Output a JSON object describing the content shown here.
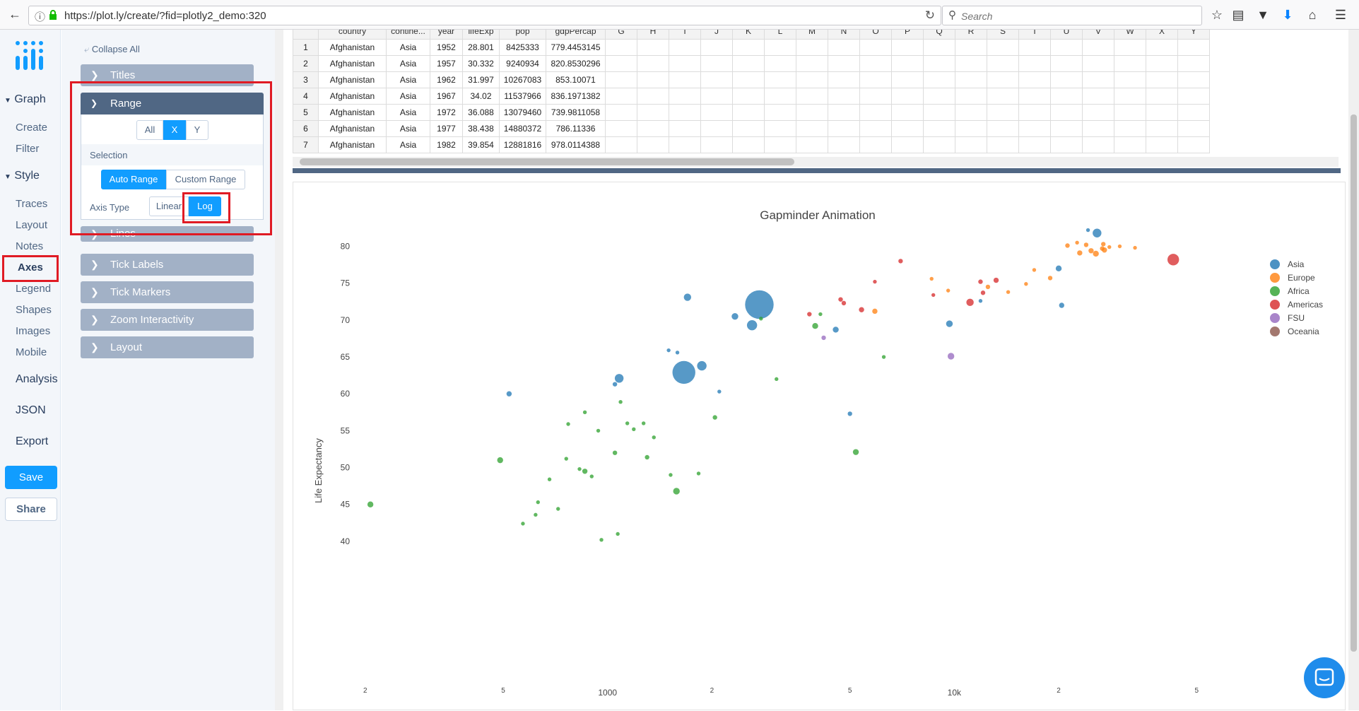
{
  "browser": {
    "url": "https://plot.ly/create/?fid=plotly2_demo:320",
    "search_placeholder": "Search"
  },
  "nav": {
    "graph": "Graph",
    "create": "Create",
    "filter": "Filter",
    "style": "Style",
    "traces": "Traces",
    "layout": "Layout",
    "notes": "Notes",
    "axes": "Axes",
    "legend": "Legend",
    "shapes": "Shapes",
    "images": "Images",
    "mobile": "Mobile",
    "analysis": "Analysis",
    "json": "JSON",
    "export": "Export",
    "save": "Save",
    "share": "Share"
  },
  "panel": {
    "collapse_all": "Collapse All",
    "titles": "Titles",
    "range": "Range",
    "axis_all": "All",
    "axis_x": "X",
    "axis_y": "Y",
    "selection": "Selection",
    "auto_range": "Auto Range",
    "custom_range": "Custom Range",
    "axis_type": "Axis Type",
    "linear": "Linear",
    "log": "Log",
    "lines": "Lines",
    "tick_labels": "Tick Labels",
    "tick_markers": "Tick Markers",
    "zoom_interactivity": "Zoom Interactivity",
    "layout": "Layout"
  },
  "grid": {
    "headers": [
      "country",
      "contine...",
      "year",
      "lifeExp",
      "pop",
      "gdpPercap",
      "G",
      "H",
      "I",
      "J",
      "K",
      "L",
      "M",
      "N",
      "O",
      "P",
      "Q",
      "R",
      "S",
      "T",
      "U",
      "V",
      "W",
      "X",
      "Y"
    ],
    "rows": [
      [
        "1",
        "Afghanistan",
        "Asia",
        "1952",
        "28.801",
        "8425333",
        "779.4453145"
      ],
      [
        "2",
        "Afghanistan",
        "Asia",
        "1957",
        "30.332",
        "9240934",
        "820.8530296"
      ],
      [
        "3",
        "Afghanistan",
        "Asia",
        "1962",
        "31.997",
        "10267083",
        "853.10071"
      ],
      [
        "4",
        "Afghanistan",
        "Asia",
        "1967",
        "34.02",
        "11537966",
        "836.1971382"
      ],
      [
        "5",
        "Afghanistan",
        "Asia",
        "1972",
        "36.088",
        "13079460",
        "739.9811058"
      ],
      [
        "6",
        "Afghanistan",
        "Asia",
        "1977",
        "38.438",
        "14880372",
        "786.11336"
      ],
      [
        "7",
        "Afghanistan",
        "Asia",
        "1982",
        "39.854",
        "12881816",
        "978.0114388"
      ]
    ]
  },
  "chart_data": {
    "type": "scatter",
    "title": "Gapminder Animation",
    "ylabel": "Life Expectancy",
    "xlabel": "",
    "x_scale": "log",
    "x_tick_labels": [
      {
        "value": 200,
        "label": "2"
      },
      {
        "value": 500,
        "label": "5"
      },
      {
        "value": 1000,
        "label": "1000"
      },
      {
        "value": 2000,
        "label": "2"
      },
      {
        "value": 5000,
        "label": "5"
      },
      {
        "value": 10000,
        "label": "10k"
      },
      {
        "value": 20000,
        "label": "2"
      },
      {
        "value": 50000,
        "label": "5"
      }
    ],
    "y_ticks": [
      40,
      45,
      50,
      55,
      60,
      65,
      70,
      75,
      80
    ],
    "legend_position": "top-right",
    "series": [
      {
        "name": "Asia",
        "color": "#1f77b4",
        "points": [
          [
            2740,
            72.1,
            38
          ],
          [
            1660,
            62.9,
            30
          ],
          [
            2610,
            69.3,
            12
          ],
          [
            1870,
            63.8,
            11
          ],
          [
            1080,
            62.1,
            10
          ],
          [
            1700,
            73.1,
            8
          ],
          [
            9680,
            69.5,
            7
          ],
          [
            2330,
            70.5,
            7
          ],
          [
            25800,
            81.8,
            10
          ],
          [
            20000,
            77.0,
            6
          ],
          [
            4550,
            68.7,
            6
          ],
          [
            520,
            60.0,
            5
          ],
          [
            1050,
            61.3,
            4
          ],
          [
            5000,
            57.3,
            4
          ],
          [
            24300,
            82.2,
            3
          ],
          [
            1500,
            65.9,
            3
          ],
          [
            1590,
            65.6,
            3
          ],
          [
            2100,
            60.3,
            3
          ],
          [
            11900,
            72.6,
            3
          ],
          [
            20400,
            72.0,
            5
          ]
        ]
      },
      {
        "name": "Europe",
        "color": "#ff7f0e",
        "points": [
          [
            25600,
            79.0,
            6
          ],
          [
            24800,
            79.4,
            5
          ],
          [
            26700,
            79.7,
            4
          ],
          [
            23000,
            79.1,
            5
          ],
          [
            27100,
            79.5,
            5
          ],
          [
            24000,
            80.2,
            4
          ],
          [
            5900,
            71.2,
            5
          ],
          [
            12500,
            74.5,
            4
          ],
          [
            18900,
            75.7,
            4
          ],
          [
            28000,
            79.9,
            3
          ],
          [
            22600,
            80.5,
            3
          ],
          [
            21200,
            80.1,
            4
          ],
          [
            17000,
            76.8,
            3
          ],
          [
            26900,
            80.3,
            4
          ],
          [
            33200,
            79.8,
            3
          ],
          [
            30000,
            80.0,
            3
          ],
          [
            16100,
            74.9,
            3
          ],
          [
            8600,
            75.6,
            3
          ],
          [
            14300,
            73.8,
            3
          ],
          [
            9600,
            74.0,
            3
          ]
        ]
      },
      {
        "name": "Africa",
        "color": "#2ca02c",
        "points": [
          [
            207,
            45.0,
            6
          ],
          [
            490,
            51.0,
            6
          ],
          [
            1580,
            46.8,
            7
          ],
          [
            5200,
            52.1,
            6
          ],
          [
            860,
            49.5,
            5
          ],
          [
            3970,
            69.2,
            6
          ],
          [
            2040,
            56.8,
            4
          ],
          [
            1050,
            52.0,
            4
          ],
          [
            2770,
            70.2,
            3
          ],
          [
            1300,
            51.4,
            4
          ],
          [
            720,
            44.4,
            3
          ],
          [
            900,
            48.8,
            3
          ],
          [
            1090,
            58.9,
            3
          ],
          [
            1140,
            56.0,
            3
          ],
          [
            770,
            55.9,
            3
          ],
          [
            860,
            57.5,
            3
          ],
          [
            960,
            40.2,
            3
          ],
          [
            1070,
            41.0,
            3
          ],
          [
            620,
            43.6,
            3
          ],
          [
            570,
            42.4,
            3
          ],
          [
            630,
            45.3,
            3
          ],
          [
            1520,
            49.0,
            3
          ],
          [
            1830,
            49.2,
            3
          ],
          [
            1270,
            56.0,
            3
          ],
          [
            1360,
            54.1,
            3
          ],
          [
            940,
            55.0,
            3
          ],
          [
            830,
            49.8,
            3
          ],
          [
            680,
            48.4,
            3
          ],
          [
            760,
            51.2,
            3
          ],
          [
            1190,
            55.2,
            3
          ],
          [
            3070,
            62.0,
            3
          ],
          [
            4110,
            70.8,
            3
          ],
          [
            6260,
            65.0,
            3
          ]
        ]
      },
      {
        "name": "Americas",
        "color": "#d62728",
        "points": [
          [
            42800,
            78.2,
            14
          ],
          [
            11100,
            72.4,
            8
          ],
          [
            5400,
            71.4,
            5
          ],
          [
            13200,
            75.4,
            5
          ],
          [
            7000,
            78.0,
            4
          ],
          [
            12100,
            73.7,
            4
          ],
          [
            4800,
            72.3,
            4
          ],
          [
            4700,
            72.8,
            4
          ],
          [
            3820,
            70.8,
            4
          ],
          [
            11900,
            75.2,
            4
          ],
          [
            5900,
            75.2,
            3
          ],
          [
            8700,
            73.4,
            3
          ]
        ]
      },
      {
        "name": "FSU",
        "color": "#9467bd",
        "points": [
          [
            9780,
            65.1,
            7
          ],
          [
            4200,
            67.6,
            4
          ]
        ]
      },
      {
        "name": "Oceania",
        "color": "#8c564b",
        "points": []
      }
    ]
  }
}
